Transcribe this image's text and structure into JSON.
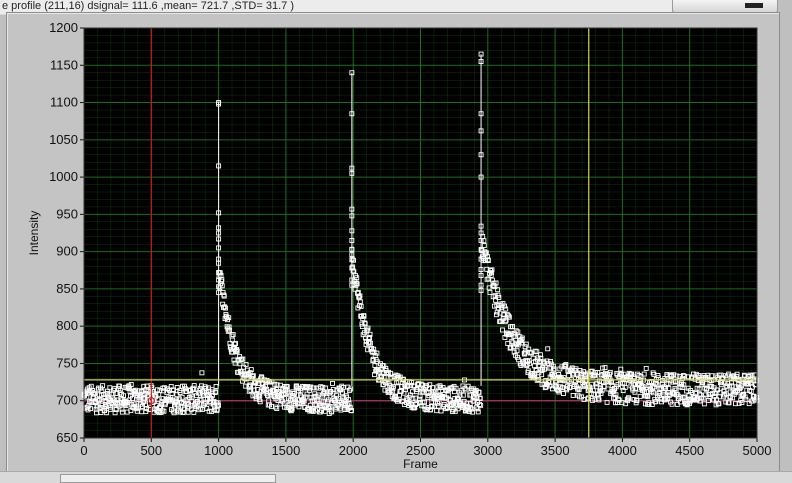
{
  "window": {
    "title_text": "e profile (211,16) dsignal= 111.6 ,mean= 721.7 ,STD= 31.7 )"
  },
  "colors": {
    "plot_background": "#000000",
    "grid_color": "#1f7a1f",
    "trace_color": "#ffffff",
    "red_cursor": "#d01515",
    "yellow_cursor": "#d8d84a",
    "magenta_baseline": "#b0306a",
    "panel": "#c4c4c4"
  },
  "chart_data": {
    "type": "scatter",
    "xlabel": "Frame",
    "ylabel": "Intensity",
    "xlim": [
      0,
      5000
    ],
    "ylim": [
      650,
      1200
    ],
    "x_ticks": [
      "0",
      "500",
      "1000",
      "1500",
      "2000",
      "2500",
      "3000",
      "3500",
      "4000",
      "4500",
      "5000"
    ],
    "y_ticks": [
      "650",
      "700",
      "750",
      "800",
      "850",
      "900",
      "950",
      "1000",
      "1050",
      "1100",
      "1150",
      "1200"
    ],
    "grid": true,
    "marker": "hollow-square",
    "segments": [
      {
        "x_start": 0,
        "x_end": 1000,
        "mean": 702,
        "spread": 23
      },
      {
        "x_start": 1000,
        "x_end": 1990,
        "peak": 1100,
        "baseline": 702,
        "decay_frames": 120,
        "spread": 22
      },
      {
        "x_start": 1990,
        "x_end": 2950,
        "peak": 1140,
        "baseline": 702,
        "decay_frames": 130,
        "spread": 22
      },
      {
        "x_start": 2950,
        "x_end": 5000,
        "peak": 1165,
        "baseline": 715,
        "decay_frames": 220,
        "spread": 26
      }
    ],
    "markers": [
      {
        "frame": 1000,
        "values": [
          1100,
          1098,
          1015,
          952,
          932,
          925,
          917,
          905,
          890,
          872,
          862,
          853,
          845
        ]
      },
      {
        "frame": 1990,
        "values": [
          1140,
          1085,
          1012,
          1005,
          957,
          948,
          928,
          915,
          903,
          896,
          889,
          878,
          862,
          855
        ]
      },
      {
        "frame": 2950,
        "values": [
          1165,
          1155,
          1085,
          1062,
          1030,
          1000,
          925,
          915,
          903,
          890,
          876,
          868,
          855,
          848
        ]
      }
    ],
    "cursors": [
      {
        "name": "red-cursor",
        "x": 500,
        "y": 700
      },
      {
        "name": "yellow-cursor",
        "x": 3750,
        "y": 728
      }
    ]
  }
}
